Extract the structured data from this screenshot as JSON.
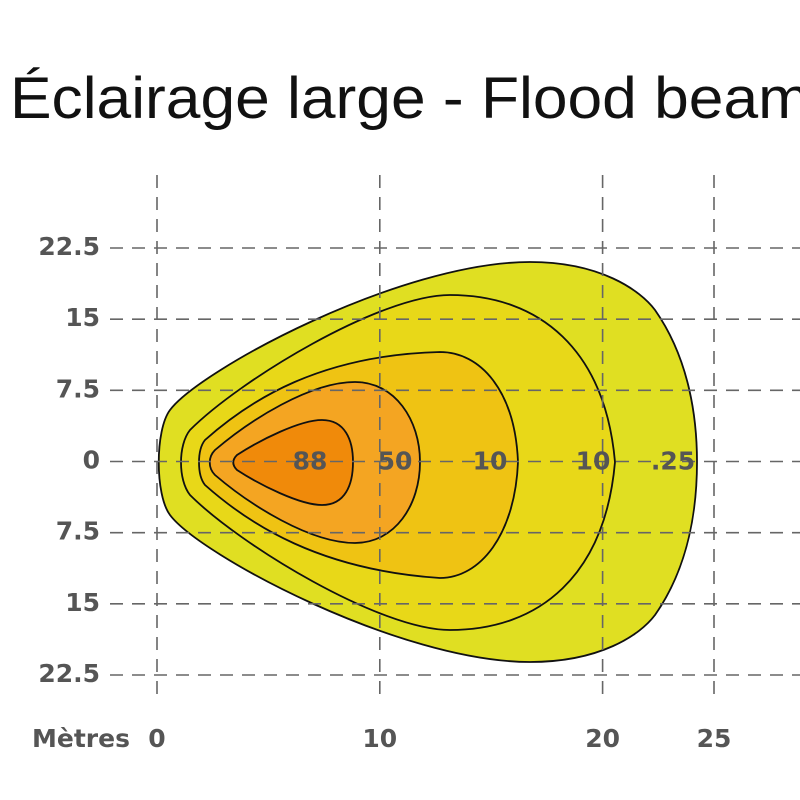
{
  "chart_data": {
    "type": "isolux",
    "title": "Éclairage large - Flood beam",
    "x_label": "Mètres",
    "xlim": [
      0,
      25
    ],
    "xticks": [
      0,
      10,
      20,
      25
    ],
    "ylim": [
      -22.5,
      22.5
    ],
    "yticks": [
      {
        "value": 22.5,
        "label": "22.5"
      },
      15,
      7.5,
      0,
      {
        "value": -7.5,
        "label": "7.5"
      },
      {
        "value": -15,
        "label": "15"
      },
      {
        "value": -22.5,
        "label": "22.5"
      }
    ],
    "grid": true,
    "contours": [
      {
        "label": ".25",
        "color": "#e0df22"
      },
      {
        "label": "10",
        "color": "#e8d818"
      },
      {
        "label": "10",
        "color": "#efc313"
      },
      {
        "label": "50",
        "color": "#f4a522"
      },
      {
        "label": "88",
        "color": "#f08a0a"
      }
    ]
  }
}
